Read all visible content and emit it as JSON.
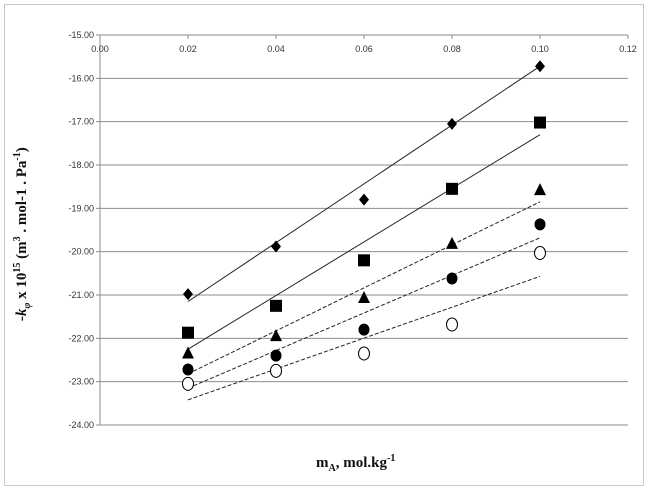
{
  "chart_data": {
    "type": "scatter",
    "title": "",
    "xlabel": {
      "main": "m",
      "sub": "A",
      "rest": ", mol.kg",
      "sup": "-1"
    },
    "ylabel": {
      "prefix": "-k",
      "sub": "φ",
      "mid": " x 10",
      "sup1": "15",
      "mid2": " (m",
      "sup2": "3",
      "mid3": " . mol-1 . Pa",
      "sup3": "-1",
      "end": ")"
    },
    "xlim": [
      0.0,
      0.12
    ],
    "ylim": [
      -24.0,
      -15.0
    ],
    "x_ticks": [
      "0.00",
      "0.02",
      "0.04",
      "0.06",
      "0.08",
      "0.10",
      "0.12"
    ],
    "y_ticks": [
      "-15.00",
      "-16.00",
      "-17.00",
      "-18.00",
      "-19.00",
      "-20.00",
      "-21.00",
      "-22.00",
      "-23.00",
      "-24.00"
    ],
    "x_axis_position": "top",
    "grid": "horizontal",
    "x": [
      0.02,
      0.04,
      0.06,
      0.08,
      0.1
    ],
    "series": [
      {
        "marker": "diamond",
        "values": [
          -20.98,
          -19.88,
          -18.8,
          -17.05,
          -15.72
        ],
        "trendline": [
          -21.15,
          -15.72
        ],
        "line_style": "solid"
      },
      {
        "marker": "square",
        "values": [
          -21.87,
          -21.25,
          -20.2,
          -18.55,
          -17.02
        ],
        "trendline": [
          -22.25,
          -17.3
        ],
        "line_style": "solid"
      },
      {
        "marker": "triangle",
        "values": [
          -22.35,
          -21.95,
          -21.07,
          -19.82,
          -18.58
        ],
        "trendline": [
          -22.82,
          -18.85
        ],
        "line_style": "dashed"
      },
      {
        "marker": "circle-filled",
        "values": [
          -22.72,
          -22.4,
          -21.8,
          -20.62,
          -19.37
        ],
        "trendline": [
          -23.15,
          -19.68
        ],
        "line_style": "dashed"
      },
      {
        "marker": "circle-open",
        "values": [
          -23.05,
          -22.75,
          -22.35,
          -21.68,
          -20.03
        ],
        "trendline": [
          -23.42,
          -20.57
        ],
        "line_style": "dashed"
      }
    ]
  }
}
